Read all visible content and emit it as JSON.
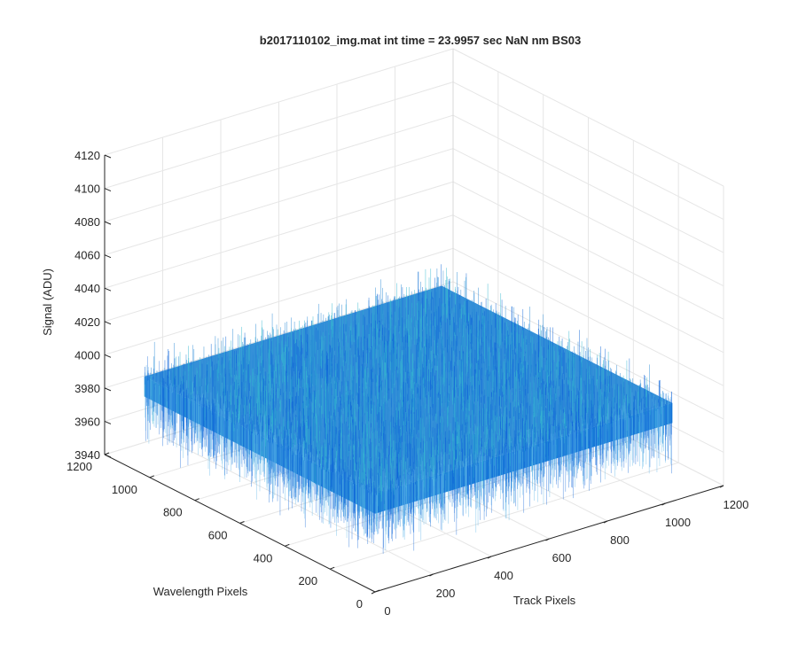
{
  "chart_data": {
    "type": "surface",
    "title": "b2017110102_img.mat int time = 23.9957 sec  NaN nm BS03",
    "xlabel": "Track Pixels",
    "ylabel": "Wavelength Pixels",
    "zlabel": "Signal (ADU)",
    "xlim": [
      0,
      1200
    ],
    "ylim": [
      0,
      1200
    ],
    "zlim": [
      3940,
      4120
    ],
    "xticks": [
      "0",
      "200",
      "400",
      "600",
      "800",
      "1000",
      "1200"
    ],
    "yticks": [
      "0",
      "200",
      "400",
      "600",
      "800",
      "1000",
      "1200"
    ],
    "zticks": [
      "3940",
      "3960",
      "3980",
      "4000",
      "4020",
      "4040",
      "4060",
      "4080",
      "4100",
      "4120"
    ],
    "surface_extent": {
      "x": [
        0,
        1024
      ],
      "y": [
        0,
        1024
      ]
    },
    "signal_mean": 3995,
    "signal_range": [
      3950,
      4060
    ],
    "colormap": "parula",
    "grid": true,
    "colors": {
      "surface_main": "#2a8ad6",
      "surface_light": "#35b8d0",
      "surface_dark": "#0d64d8",
      "grid": "#e6e6e6",
      "axis": "#262626"
    }
  }
}
